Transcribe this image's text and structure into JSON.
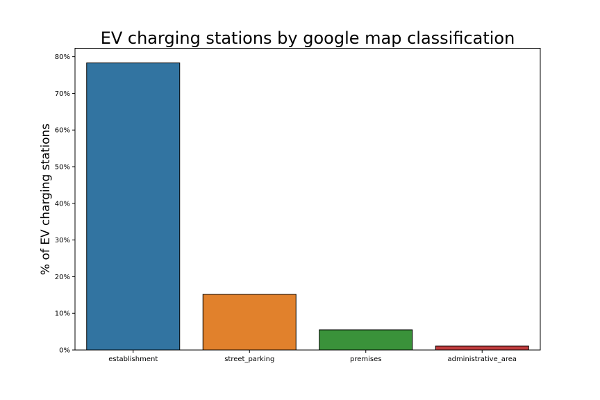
{
  "chart_data": {
    "type": "bar",
    "title": "EV charging stations by google map classification",
    "xlabel": "",
    "ylabel": "% of EV charging stations",
    "categories": [
      "establishment",
      "street_parking",
      "premises",
      "administrative_area"
    ],
    "values": [
      78.3,
      15.2,
      5.5,
      1.1
    ],
    "colors": [
      "#3274a1",
      "#e1812c",
      "#3a923a",
      "#c03d3e"
    ],
    "ylim": [
      0,
      82.3
    ],
    "yticks": [
      0,
      10,
      20,
      30,
      40,
      50,
      60,
      70,
      80
    ],
    "ytick_labels": [
      "0%",
      "10%",
      "20%",
      "30%",
      "40%",
      "50%",
      "60%",
      "70%",
      "80%"
    ],
    "grid": false,
    "legend": "none"
  }
}
